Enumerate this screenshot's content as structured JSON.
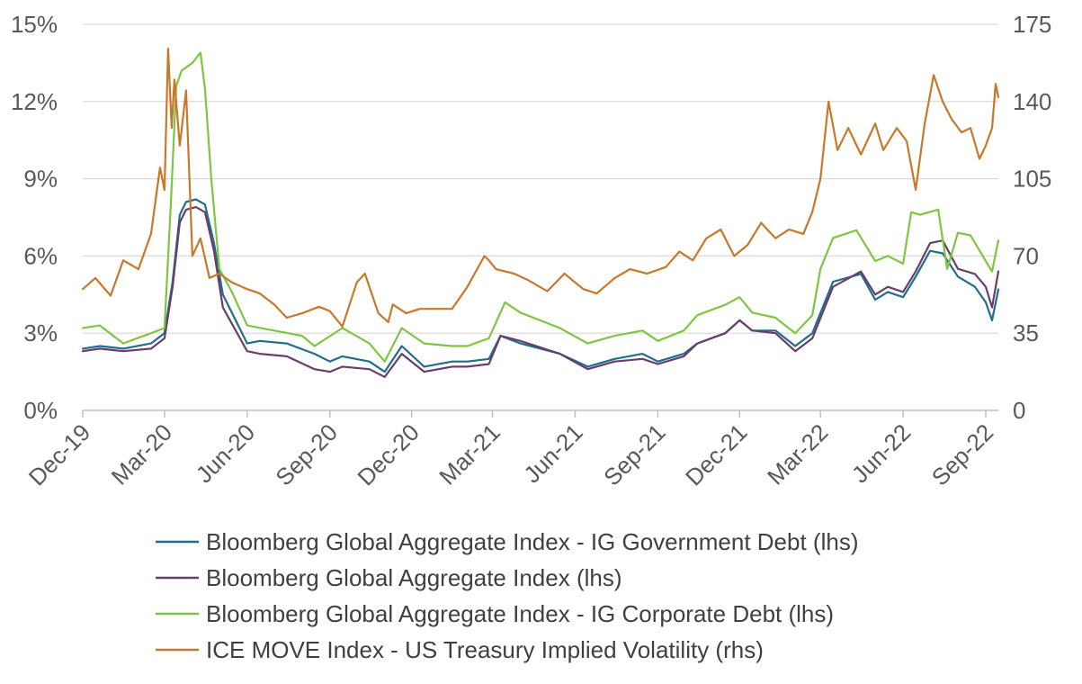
{
  "chart_data": {
    "type": "line",
    "title": "",
    "xlabel": "",
    "ylabel": "",
    "y2label": "",
    "x_ticks": [
      "Dec-19",
      "Mar-20",
      "Jun-20",
      "Sep-20",
      "Dec-20",
      "Mar-21",
      "Jun-21",
      "Sep-21",
      "Dec-21",
      "Mar-22",
      "Jun-22",
      "Sep-22"
    ],
    "x_range": [
      "2019-12-01",
      "2022-09-15"
    ],
    "y_left": {
      "ticks": [
        "0%",
        "3%",
        "6%",
        "9%",
        "12%",
        "15%"
      ],
      "ylim": [
        0,
        15
      ]
    },
    "y_right": {
      "ticks": [
        "0",
        "35",
        "70",
        "105",
        "140",
        "175"
      ],
      "ylim": [
        0,
        175
      ]
    },
    "grid": "horizontal",
    "legend_position": "bottom",
    "series": [
      {
        "name": "Bloomberg Global Aggregate Index - IG Government Debt (lhs)",
        "axis": "left",
        "color": "#1f6e8c",
        "x": [
          "2019-12-01",
          "2019-12-20",
          "2020-01-15",
          "2020-02-15",
          "2020-03-01",
          "2020-03-10",
          "2020-03-18",
          "2020-03-25",
          "2020-04-05",
          "2020-04-15",
          "2020-04-25",
          "2020-05-05",
          "2020-06-01",
          "2020-06-15",
          "2020-07-15",
          "2020-08-15",
          "2020-09-01",
          "2020-09-15",
          "2020-10-15",
          "2020-11-01",
          "2020-11-20",
          "2020-12-15",
          "2021-01-15",
          "2021-02-01",
          "2021-02-25",
          "2021-03-10",
          "2021-04-01",
          "2021-05-15",
          "2021-06-15",
          "2021-07-15",
          "2021-08-15",
          "2021-09-01",
          "2021-09-30",
          "2021-10-15",
          "2021-11-15",
          "2021-12-01",
          "2021-12-15",
          "2022-01-10",
          "2022-02-01",
          "2022-02-20",
          "2022-03-15",
          "2022-04-15",
          "2022-05-01",
          "2022-05-15",
          "2022-06-01",
          "2022-06-15",
          "2022-07-01",
          "2022-07-15",
          "2022-08-01",
          "2022-08-20",
          "2022-09-01",
          "2022-09-08",
          "2022-09-15"
        ],
        "values": [
          2.4,
          2.5,
          2.4,
          2.6,
          3.0,
          5.0,
          7.6,
          8.1,
          8.2,
          8.0,
          6.5,
          4.5,
          2.6,
          2.7,
          2.6,
          2.2,
          1.9,
          2.1,
          1.9,
          1.5,
          2.5,
          1.7,
          1.9,
          1.9,
          2.0,
          2.9,
          2.6,
          2.2,
          1.7,
          2.0,
          2.2,
          1.9,
          2.2,
          2.6,
          3.0,
          3.5,
          3.1,
          3.1,
          2.5,
          3.0,
          5.0,
          5.3,
          4.3,
          4.6,
          4.4,
          5.2,
          6.2,
          6.1,
          5.2,
          4.8,
          4.2,
          3.5,
          4.7
        ]
      },
      {
        "name": "Bloomberg Global Aggregate Index (lhs)",
        "axis": "left",
        "color": "#6b3d6b",
        "x": [
          "2019-12-01",
          "2019-12-20",
          "2020-01-15",
          "2020-02-15",
          "2020-03-01",
          "2020-03-10",
          "2020-03-18",
          "2020-03-25",
          "2020-04-05",
          "2020-04-15",
          "2020-04-25",
          "2020-05-05",
          "2020-06-01",
          "2020-06-15",
          "2020-07-15",
          "2020-08-15",
          "2020-09-01",
          "2020-09-15",
          "2020-10-15",
          "2020-11-01",
          "2020-11-20",
          "2020-12-15",
          "2021-01-15",
          "2021-02-01",
          "2021-02-25",
          "2021-03-10",
          "2021-04-01",
          "2021-05-15",
          "2021-06-15",
          "2021-07-15",
          "2021-08-15",
          "2021-09-01",
          "2021-09-30",
          "2021-10-15",
          "2021-11-15",
          "2021-12-01",
          "2021-12-15",
          "2022-01-10",
          "2022-02-01",
          "2022-02-20",
          "2022-03-15",
          "2022-04-15",
          "2022-05-01",
          "2022-05-15",
          "2022-06-01",
          "2022-06-15",
          "2022-07-01",
          "2022-07-15",
          "2022-08-01",
          "2022-08-20",
          "2022-09-01",
          "2022-09-08",
          "2022-09-15"
        ],
        "values": [
          2.3,
          2.4,
          2.3,
          2.4,
          2.8,
          4.8,
          7.3,
          7.8,
          7.9,
          7.7,
          6.2,
          4.0,
          2.3,
          2.2,
          2.1,
          1.6,
          1.5,
          1.7,
          1.6,
          1.3,
          2.2,
          1.5,
          1.7,
          1.7,
          1.8,
          2.9,
          2.7,
          2.2,
          1.6,
          1.9,
          2.0,
          1.8,
          2.1,
          2.6,
          3.0,
          3.5,
          3.1,
          3.0,
          2.3,
          2.8,
          4.8,
          5.4,
          4.5,
          4.8,
          4.6,
          5.4,
          6.5,
          6.6,
          5.5,
          5.3,
          4.8,
          4.0,
          5.4
        ]
      },
      {
        "name": "Bloomberg Global Aggregate Index - IG Corporate Debt (lhs)",
        "axis": "left",
        "color": "#7ec641",
        "x": [
          "2019-12-01",
          "2019-12-20",
          "2020-01-15",
          "2020-02-15",
          "2020-03-01",
          "2020-03-08",
          "2020-03-14",
          "2020-03-20",
          "2020-04-01",
          "2020-04-10",
          "2020-04-15",
          "2020-04-22",
          "2020-05-01",
          "2020-05-15",
          "2020-06-01",
          "2020-07-01",
          "2020-08-01",
          "2020-08-15",
          "2020-09-15",
          "2020-10-15",
          "2020-11-01",
          "2020-11-20",
          "2020-12-15",
          "2021-01-15",
          "2021-02-01",
          "2021-02-25",
          "2021-03-15",
          "2021-04-01",
          "2021-05-15",
          "2021-06-15",
          "2021-07-15",
          "2021-08-15",
          "2021-09-01",
          "2021-09-30",
          "2021-10-15",
          "2021-11-15",
          "2021-12-01",
          "2021-12-15",
          "2022-01-10",
          "2022-02-01",
          "2022-02-20",
          "2022-03-01",
          "2022-03-15",
          "2022-04-10",
          "2022-05-01",
          "2022-05-15",
          "2022-06-01",
          "2022-06-10",
          "2022-06-20",
          "2022-07-10",
          "2022-07-20",
          "2022-08-01",
          "2022-08-15",
          "2022-09-01",
          "2022-09-08",
          "2022-09-15"
        ],
        "values": [
          3.2,
          3.3,
          2.6,
          3.0,
          3.2,
          8.0,
          12.6,
          13.2,
          13.5,
          13.9,
          12.5,
          9.0,
          5.5,
          4.6,
          3.3,
          3.1,
          2.9,
          2.5,
          3.2,
          2.6,
          1.9,
          3.2,
          2.6,
          2.5,
          2.5,
          2.8,
          4.2,
          3.8,
          3.2,
          2.6,
          2.9,
          3.1,
          2.7,
          3.1,
          3.7,
          4.1,
          4.4,
          3.8,
          3.6,
          3.0,
          3.7,
          5.5,
          6.7,
          7.0,
          5.8,
          6.0,
          5.7,
          7.7,
          7.6,
          7.8,
          5.5,
          6.9,
          6.8,
          5.8,
          5.4,
          6.6
        ]
      },
      {
        "name": "ICE MOVE Index - US Treasury Implied Volatility (rhs)",
        "axis": "right",
        "color": "#c8782a",
        "x": [
          "2019-12-01",
          "2019-12-15",
          "2020-01-01",
          "2020-01-15",
          "2020-02-01",
          "2020-02-15",
          "2020-02-25",
          "2020-03-01",
          "2020-03-05",
          "2020-03-09",
          "2020-03-12",
          "2020-03-18",
          "2020-03-25",
          "2020-04-01",
          "2020-04-10",
          "2020-04-20",
          "2020-05-01",
          "2020-05-15",
          "2020-06-01",
          "2020-06-15",
          "2020-07-01",
          "2020-07-15",
          "2020-08-01",
          "2020-08-20",
          "2020-09-01",
          "2020-09-15",
          "2020-10-01",
          "2020-10-10",
          "2020-10-25",
          "2020-11-05",
          "2020-11-10",
          "2020-11-25",
          "2020-12-10",
          "2020-12-25",
          "2021-01-15",
          "2021-02-01",
          "2021-02-20",
          "2021-02-25",
          "2021-03-05",
          "2021-03-25",
          "2021-04-10",
          "2021-05-01",
          "2021-05-20",
          "2021-06-10",
          "2021-06-25",
          "2021-07-15",
          "2021-08-01",
          "2021-08-20",
          "2021-09-10",
          "2021-09-25",
          "2021-10-10",
          "2021-10-25",
          "2021-11-10",
          "2021-11-25",
          "2021-12-10",
          "2021-12-25",
          "2022-01-10",
          "2022-01-25",
          "2022-02-10",
          "2022-02-20",
          "2022-03-01",
          "2022-03-10",
          "2022-03-20",
          "2022-04-01",
          "2022-04-15",
          "2022-05-01",
          "2022-05-10",
          "2022-05-25",
          "2022-06-05",
          "2022-06-15",
          "2022-06-25",
          "2022-07-05",
          "2022-07-15",
          "2022-07-25",
          "2022-08-05",
          "2022-08-15",
          "2022-08-25",
          "2022-09-01",
          "2022-09-08",
          "2022-09-12",
          "2022-09-15"
        ],
        "values": [
          55,
          60,
          52,
          68,
          64,
          80,
          110,
          100,
          164,
          128,
          150,
          120,
          145,
          70,
          78,
          60,
          62,
          58,
          55,
          53,
          48,
          42,
          44,
          47,
          45,
          38,
          58,
          62,
          44,
          40,
          48,
          44,
          46,
          46,
          46,
          56,
          70,
          68,
          64,
          62,
          59,
          54,
          62,
          55,
          53,
          60,
          64,
          62,
          65,
          72,
          68,
          78,
          82,
          70,
          75,
          85,
          78,
          82,
          80,
          90,
          105,
          140,
          118,
          128,
          116,
          130,
          118,
          128,
          122,
          100,
          130,
          152,
          140,
          132,
          126,
          128,
          114,
          120,
          128,
          148,
          142
        ]
      }
    ]
  }
}
